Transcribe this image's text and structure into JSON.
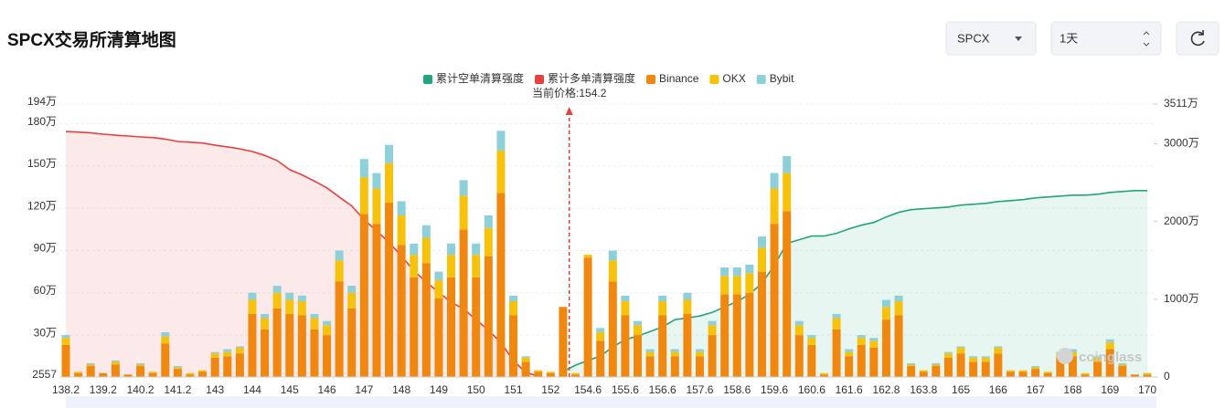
{
  "chart_data": {
    "type": "bar",
    "stacked": true,
    "title": "SPCX交易所清算地图",
    "annotation": "当前价格:154.2",
    "watermark": "coinglass",
    "categories": [
      "138.2",
      null,
      null,
      "139.2",
      null,
      null,
      "140.2",
      null,
      null,
      "141.2",
      null,
      null,
      "143",
      null,
      null,
      "144",
      null,
      null,
      "145",
      null,
      null,
      "146",
      null,
      null,
      "147",
      null,
      null,
      "148",
      null,
      null,
      "149",
      null,
      null,
      "150",
      null,
      null,
      "151",
      null,
      null,
      "152",
      null,
      null,
      "154.6",
      null,
      null,
      "155.6",
      null,
      null,
      "156.6",
      null,
      null,
      "157.6",
      null,
      null,
      "158.6",
      null,
      null,
      "159.6",
      null,
      null,
      "160.6",
      null,
      null,
      "161.6",
      null,
      null,
      "162.8",
      null,
      null,
      "163.8",
      null,
      null,
      "165",
      null,
      null,
      "166",
      null,
      null,
      "167",
      null,
      null,
      "168",
      null,
      null,
      "169",
      null,
      null,
      "170"
    ],
    "series": [
      {
        "name": "累计空单清算强度",
        "type": "line",
        "axis": "y2",
        "color": "#22a47f",
        "fill": "rgba(34,164,127,0.10)",
        "values": [
          null,
          null,
          null,
          null,
          null,
          null,
          null,
          null,
          null,
          null,
          null,
          null,
          null,
          null,
          null,
          null,
          null,
          null,
          null,
          null,
          null,
          null,
          null,
          null,
          null,
          null,
          null,
          null,
          null,
          null,
          null,
          null,
          null,
          null,
          null,
          null,
          null,
          null,
          null,
          null,
          70,
          152,
          211,
          269,
          386,
          480,
          526,
          585,
          643,
          737,
          760,
          784,
          830,
          900,
          971,
          1064,
          1205,
          1439,
          1719,
          1766,
          1813,
          1813,
          1848,
          1906,
          1953,
          1988,
          2058,
          2117,
          2152,
          2164,
          2175,
          2187,
          2211,
          2222,
          2234,
          2257,
          2269,
          2281,
          2304,
          2316,
          2327,
          2339,
          2339,
          2351,
          2374,
          2386,
          2398,
          2398
        ]
      },
      {
        "name": "累计多单清算强度",
        "type": "line",
        "axis": "y2",
        "color": "#e8403c",
        "fill": "rgba(232,64,60,0.11)",
        "values": [
          3158,
          3150,
          3140,
          3123,
          3110,
          3100,
          3088,
          3080,
          3060,
          3030,
          3020,
          3010,
          2982,
          2960,
          2935,
          2900,
          2850,
          2784,
          2667,
          2600,
          2520,
          2433,
          2316,
          2200,
          2023,
          1880,
          1731,
          1556,
          1368,
          1220,
          1088,
          960,
          877,
          737,
          600,
          444,
          211,
          58,
          12,
          null,
          null,
          null,
          null,
          null,
          null,
          null,
          null,
          null,
          null,
          null,
          null,
          null,
          null,
          null,
          null,
          null,
          null,
          null,
          null,
          null,
          null,
          null,
          null,
          null,
          null,
          null,
          null,
          null,
          null,
          null,
          null,
          null,
          null,
          null,
          null,
          null,
          null,
          null,
          null,
          null,
          null,
          null,
          null,
          null,
          null,
          null,
          null,
          null
        ]
      },
      {
        "name": "Binance",
        "color": "#f0870f",
        "values": [
          23,
          3,
          8,
          3,
          9,
          2,
          8,
          3,
          24,
          6,
          2,
          4,
          14,
          15,
          17,
          45,
          34,
          49,
          45,
          44,
          34,
          30,
          68,
          49,
          116,
          109,
          124,
          94,
          71,
          81,
          56,
          71,
          105,
          71,
          86,
          131,
          44,
          11,
          4,
          3,
          50,
          2,
          85,
          26,
          68,
          44,
          30,
          15,
          44,
          15,
          45,
          15,
          30,
          59,
          59,
          60,
          75,
          109,
          118,
          30,
          23,
          2,
          34,
          15,
          23,
          21,
          41,
          44,
          8,
          4,
          8,
          14,
          17,
          11,
          11,
          17,
          4,
          4,
          6,
          3,
          14,
          15,
          2,
          11,
          20,
          8,
          2,
          2
        ]
      },
      {
        "name": "OKX",
        "color": "#f6c20c",
        "values": [
          5,
          1,
          1,
          0,
          2,
          0,
          1,
          1,
          5,
          1,
          1,
          1,
          3,
          3,
          4,
          10,
          8,
          11,
          10,
          10,
          8,
          7,
          15,
          11,
          26,
          25,
          28,
          21,
          16,
          18,
          13,
          16,
          24,
          16,
          20,
          30,
          10,
          3,
          1,
          1,
          0,
          1,
          2,
          6,
          15,
          10,
          7,
          3,
          10,
          3,
          10,
          3,
          7,
          13,
          13,
          14,
          17,
          25,
          27,
          7,
          5,
          1,
          8,
          3,
          5,
          5,
          9,
          10,
          1,
          1,
          1,
          3,
          4,
          3,
          3,
          4,
          1,
          1,
          1,
          1,
          3,
          3,
          1,
          3,
          5,
          1,
          0,
          1
        ]
      },
      {
        "name": "Bybit",
        "color": "#8dd0d9",
        "values": [
          2,
          0,
          1,
          0,
          1,
          0,
          1,
          0,
          3,
          1,
          0,
          0,
          1,
          2,
          1,
          5,
          3,
          5,
          5,
          4,
          3,
          3,
          7,
          5,
          13,
          11,
          13,
          10,
          8,
          9,
          6,
          8,
          11,
          8,
          9,
          14,
          4,
          1,
          0,
          0,
          0,
          0,
          0,
          3,
          7,
          4,
          3,
          2,
          4,
          2,
          5,
          2,
          3,
          6,
          6,
          6,
          8,
          11,
          12,
          3,
          2,
          0,
          3,
          2,
          2,
          2,
          5,
          4,
          1,
          0,
          1,
          1,
          1,
          1,
          1,
          1,
          0,
          0,
          1,
          0,
          1,
          2,
          0,
          1,
          2,
          1,
          0,
          0
        ]
      }
    ],
    "ylim": [
      0.2557,
      194
    ],
    "yticks": [
      {
        "value": 0.2557,
        "label": "2557"
      },
      {
        "value": 30,
        "label": "30万"
      },
      {
        "value": 60,
        "label": "60万"
      },
      {
        "value": 90,
        "label": "90万"
      },
      {
        "value": 120,
        "label": "120万"
      },
      {
        "value": 150,
        "label": "150万"
      },
      {
        "value": 180,
        "label": "180万"
      },
      {
        "value": 194,
        "label": "194万"
      }
    ],
    "y2lim": [
      0,
      3511
    ],
    "y2ticks": [
      0,
      {
        "value": 1000,
        "label": "1000万"
      },
      {
        "value": 2000,
        "label": "2000万"
      },
      {
        "value": 3000,
        "label": "3000万"
      },
      {
        "value": 3511,
        "label": "3511万"
      }
    ],
    "grid": true,
    "legend": "top"
  },
  "controls": {
    "symbol": "SPCX",
    "interval": "1天"
  }
}
